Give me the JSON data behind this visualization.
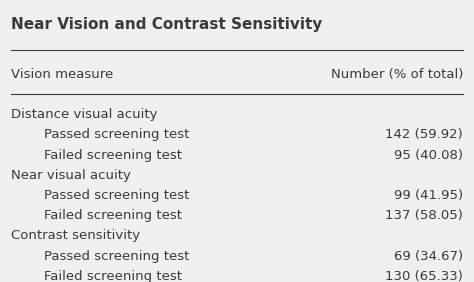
{
  "title": "Near Vision and Contrast Sensitivity",
  "col1_header": "Vision measure",
  "col2_header": "Number (% of total)",
  "rows": [
    {
      "label": "Distance visual acuity",
      "value": "",
      "indent": false
    },
    {
      "label": "Passed screening test",
      "value": "142 (59.92)",
      "indent": true
    },
    {
      "label": "Failed screening test",
      "value": "95 (40.08)",
      "indent": true
    },
    {
      "label": "Near visual acuity",
      "value": "",
      "indent": false
    },
    {
      "label": "Passed screening test",
      "value": "99 (41.95)",
      "indent": true
    },
    {
      "label": "Failed screening test",
      "value": "137 (58.05)",
      "indent": true
    },
    {
      "label": "Contrast sensitivity",
      "value": "",
      "indent": false
    },
    {
      "label": "Passed screening test",
      "value": "69 (34.67)",
      "indent": true
    },
    {
      "label": "Failed screening test",
      "value": "130 (65.33)",
      "indent": true
    }
  ],
  "background_color": "#f0f0f0",
  "text_color": "#3a3a3a",
  "title_fontsize": 11,
  "header_fontsize": 9.5,
  "row_fontsize": 9.5
}
